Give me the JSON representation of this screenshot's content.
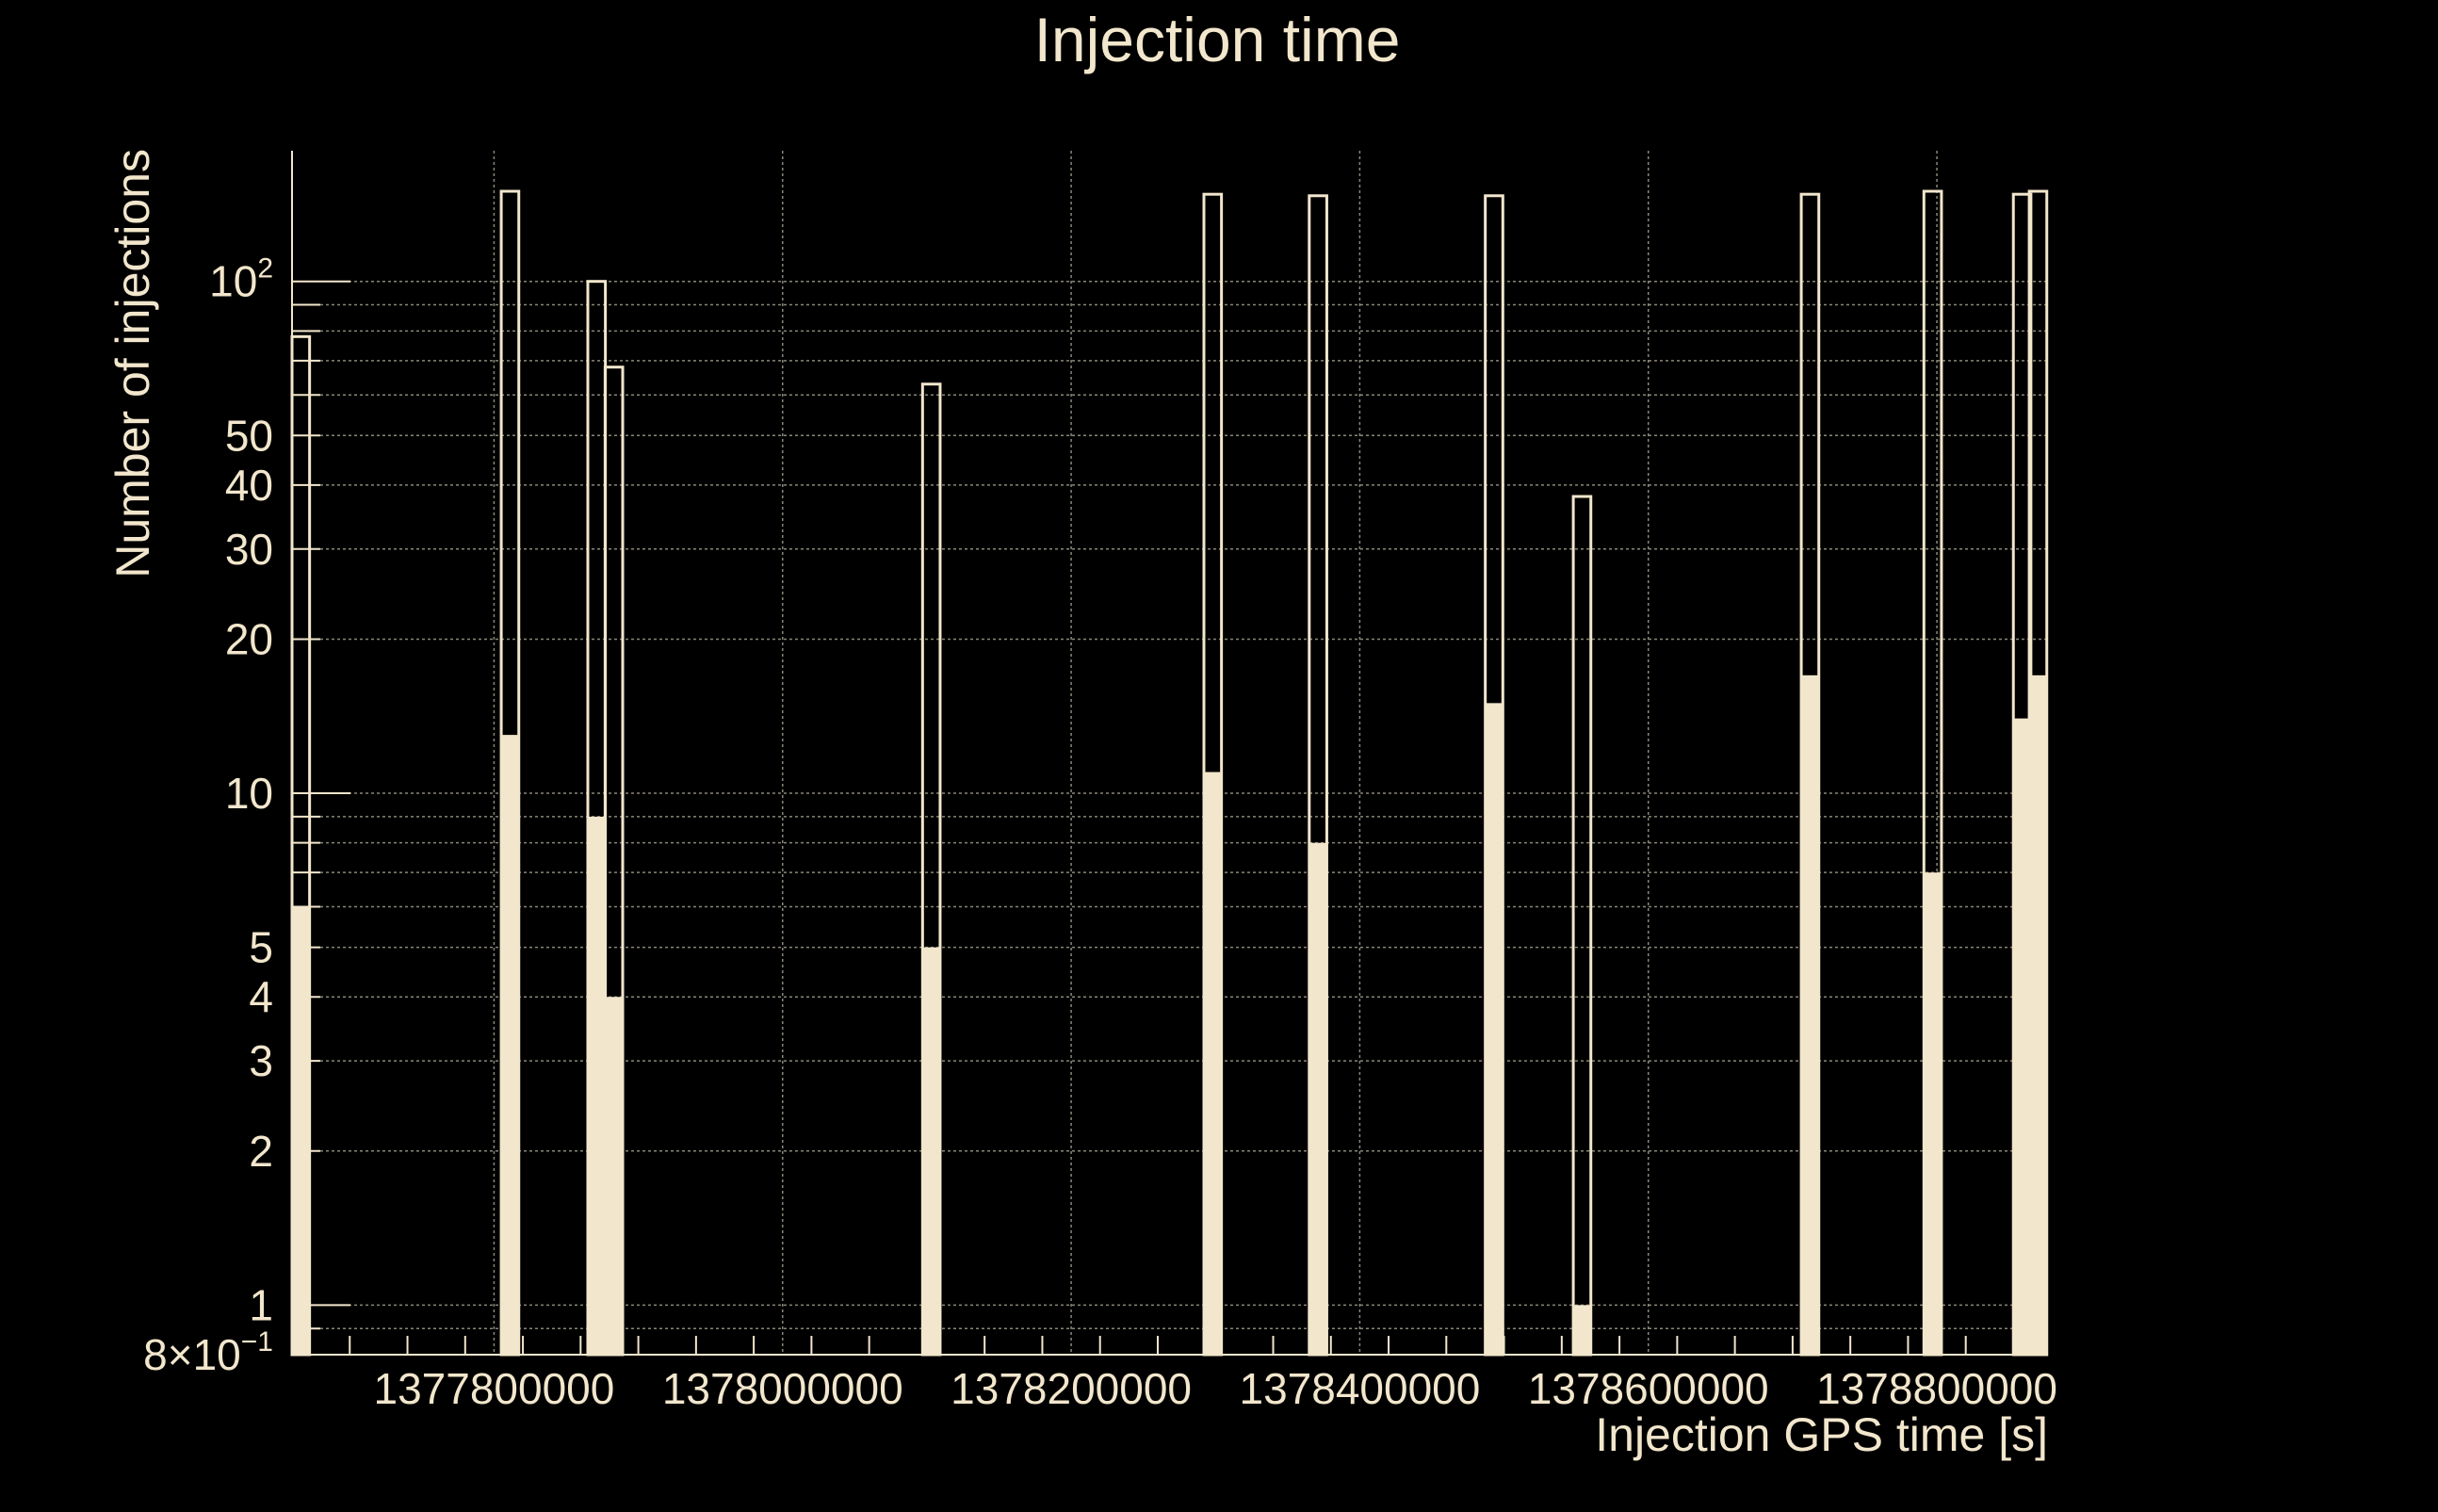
{
  "chart_data": {
    "type": "bar",
    "title": "Injection time",
    "xlabel": "Injection GPS time [s]",
    "ylabel": "Number of injections",
    "xlim": [
      1377660000,
      1378877000
    ],
    "ylim": [
      0.8,
      180
    ],
    "yscale": "log",
    "grid": true,
    "x_ticks": [
      {
        "value": 1377800000,
        "label": "1377800000"
      },
      {
        "value": 1378000000,
        "label": "1378000000"
      },
      {
        "value": 1378200000,
        "label": "1378200000"
      },
      {
        "value": 1378400000,
        "label": "1378400000"
      },
      {
        "value": 1378600000,
        "label": "1378600000"
      },
      {
        "value": 1378800000,
        "label": "1378800000"
      }
    ],
    "y_ticks": [
      {
        "value": 0.8,
        "label": "8×10",
        "sup": "−1"
      },
      {
        "value": 1,
        "label": "1"
      },
      {
        "value": 2,
        "label": "2"
      },
      {
        "value": 3,
        "label": "3"
      },
      {
        "value": 4,
        "label": "4"
      },
      {
        "value": 5,
        "label": "5"
      },
      {
        "value": 10,
        "label": "10"
      },
      {
        "value": 20,
        "label": "20"
      },
      {
        "value": 30,
        "label": "30"
      },
      {
        "value": 40,
        "label": "40"
      },
      {
        "value": 50,
        "label": "50"
      },
      {
        "value": 100,
        "label": "10",
        "sup": "2"
      }
    ],
    "bin_width": 12170,
    "series": [
      {
        "style": "outline",
        "color": "#f2e6cc",
        "points": [
          {
            "x": 1377660000,
            "y": 78
          },
          {
            "x": 1377805000,
            "y": 150
          },
          {
            "x": 1377865000,
            "y": 100
          },
          {
            "x": 1377877000,
            "y": 68
          },
          {
            "x": 1378097000,
            "y": 63
          },
          {
            "x": 1378292000,
            "y": 148
          },
          {
            "x": 1378365000,
            "y": 147
          },
          {
            "x": 1378487000,
            "y": 147
          },
          {
            "x": 1378548000,
            "y": 38
          },
          {
            "x": 1378706000,
            "y": 148
          },
          {
            "x": 1378791000,
            "y": 150
          },
          {
            "x": 1378853000,
            "y": 148
          },
          {
            "x": 1378864000,
            "y": 150
          }
        ]
      },
      {
        "style": "filled",
        "color": "#f2e6cc",
        "points": [
          {
            "x": 1377660000,
            "y": 6
          },
          {
            "x": 1377805000,
            "y": 13
          },
          {
            "x": 1377865000,
            "y": 9
          },
          {
            "x": 1377877000,
            "y": 4
          },
          {
            "x": 1378097000,
            "y": 5
          },
          {
            "x": 1378292000,
            "y": 11
          },
          {
            "x": 1378365000,
            "y": 8
          },
          {
            "x": 1378487000,
            "y": 15
          },
          {
            "x": 1378548000,
            "y": 1
          },
          {
            "x": 1378706000,
            "y": 17
          },
          {
            "x": 1378791000,
            "y": 7
          },
          {
            "x": 1378853000,
            "y": 14
          },
          {
            "x": 1378864000,
            "y": 17
          }
        ]
      }
    ]
  }
}
